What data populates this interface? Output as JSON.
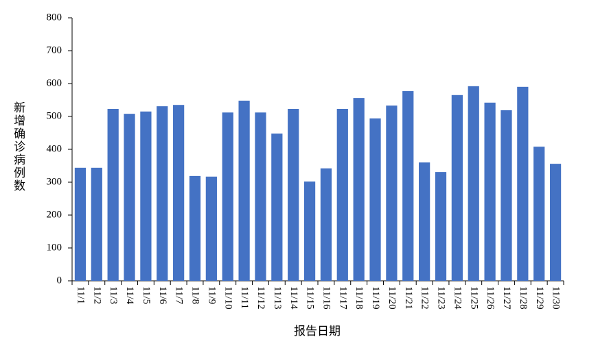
{
  "chart_data": {
    "type": "bar",
    "y_label": "新增确诊病例数",
    "x_label": "报告日期",
    "categories": [
      "11/1",
      "11/2",
      "11/3",
      "11/4",
      "11/5",
      "11/6",
      "11/7",
      "11/8",
      "11/9",
      "11/10",
      "11/11",
      "11/12",
      "11/13",
      "11/14",
      "11/15",
      "11/16",
      "11/17",
      "11/18",
      "11/19",
      "11/20",
      "11/21",
      "11/22",
      "11/23",
      "11/24",
      "11/25",
      "11/26",
      "11/27",
      "11/28",
      "11/29",
      "11/30"
    ],
    "values": [
      344,
      344,
      523,
      508,
      515,
      531,
      535,
      319,
      317,
      512,
      548,
      512,
      448,
      523,
      302,
      342,
      523,
      556,
      494,
      533,
      577,
      360,
      331,
      565,
      592,
      542,
      519,
      590,
      408,
      356
    ],
    "color": "#4472c4",
    "ylim": [
      0,
      800
    ],
    "yticks": [
      0,
      100,
      200,
      300,
      400,
      500,
      600,
      700,
      800
    ],
    "grid": false
  }
}
